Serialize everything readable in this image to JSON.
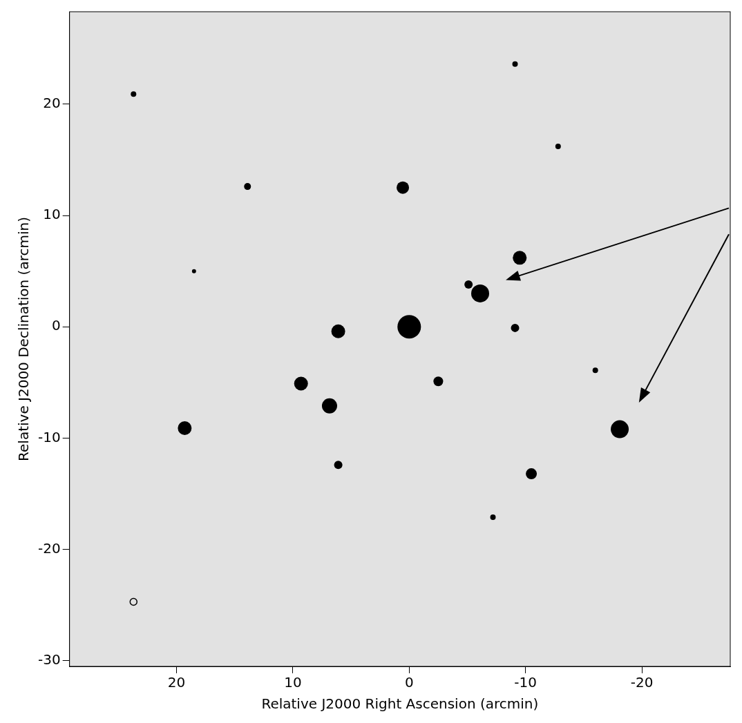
{
  "chart_data": {
    "type": "bubble",
    "x_label": "Relative J2000 Right Ascension (arcmin)",
    "y_label": "Relative J2000 Declination (arcmin)",
    "xlim": [
      29.2,
      -27.6
    ],
    "ylim": [
      -30.5,
      28.3
    ],
    "xticks": [
      20,
      10,
      0,
      -10,
      -20
    ],
    "yticks": [
      20,
      10,
      0,
      -10,
      -20,
      -30
    ],
    "grid": false,
    "series": [
      {
        "color": "#000000",
        "marker": "filled",
        "x": [
          0,
          6.1,
          0.55,
          -6.1,
          -5.1,
          -9.5,
          -9.1,
          9.3,
          6.85,
          -2.5,
          -18.1,
          -10.5,
          19.3,
          6.1,
          13.9,
          23.7,
          -9.1,
          -12.8,
          -7.2,
          -16.0,
          18.5
        ],
        "values": [
          0,
          -0.4,
          12.5,
          3.0,
          3.8,
          6.2,
          -0.1,
          -5.1,
          -7.1,
          -4.9,
          -9.2,
          -13.2,
          -9.1,
          -12.4,
          12.6,
          20.9,
          23.6,
          16.2,
          -17.1,
          -3.9,
          5.0
        ],
        "sizes": [
          17,
          10,
          9,
          13,
          6,
          10,
          6,
          10,
          11,
          7,
          13,
          8,
          10,
          6,
          5,
          4,
          4,
          4,
          4,
          4,
          3
        ]
      },
      {
        "color": "#000000",
        "marker": "open",
        "x": [
          23.7
        ],
        "values": [
          -24.7
        ],
        "sizes": [
          5
        ]
      }
    ],
    "arrows": [
      {
        "to": [
          -8.3,
          4.2
        ]
      },
      {
        "to": [
          -19.75,
          -6.8
        ]
      }
    ]
  }
}
